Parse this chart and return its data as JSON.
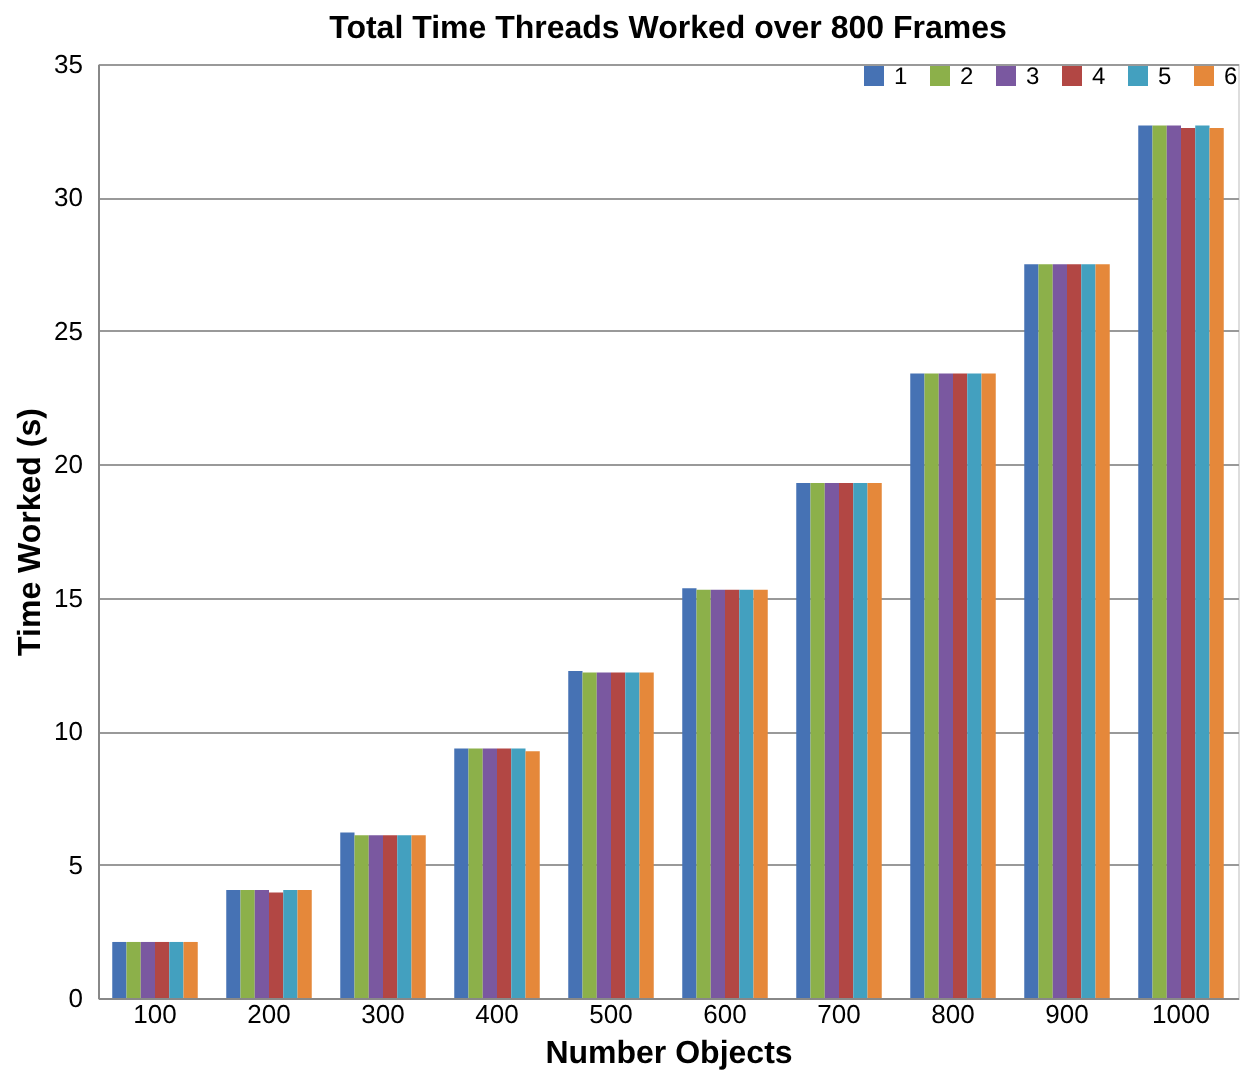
{
  "chart_data": {
    "type": "bar",
    "title": "Total Time Threads Worked over 800 Frames",
    "xlabel": "Number Objects",
    "ylabel": "Time Worked (s)",
    "categories": [
      "100",
      "200",
      "300",
      "400",
      "500",
      "600",
      "700",
      "800",
      "900",
      "1000"
    ],
    "series": [
      {
        "name": "1",
        "color": "#4672b4",
        "values": [
          2.1,
          4.05,
          6.2,
          9.35,
          12.25,
          15.35,
          19.3,
          23.4,
          27.5,
          32.7
        ]
      },
      {
        "name": "2",
        "color": "#8cb04a",
        "values": [
          2.1,
          4.05,
          6.1,
          9.35,
          12.2,
          15.3,
          19.3,
          23.4,
          27.5,
          32.7
        ]
      },
      {
        "name": "3",
        "color": "#7a58a0",
        "values": [
          2.1,
          4.05,
          6.1,
          9.35,
          12.2,
          15.3,
          19.3,
          23.4,
          27.5,
          32.7
        ]
      },
      {
        "name": "4",
        "color": "#b24744",
        "values": [
          2.1,
          3.95,
          6.1,
          9.35,
          12.2,
          15.3,
          19.3,
          23.4,
          27.5,
          32.6
        ]
      },
      {
        "name": "5",
        "color": "#43a0bf",
        "values": [
          2.1,
          4.05,
          6.1,
          9.35,
          12.2,
          15.3,
          19.3,
          23.4,
          27.5,
          32.7
        ]
      },
      {
        "name": "6",
        "color": "#e5883a",
        "values": [
          2.1,
          4.05,
          6.1,
          9.25,
          12.2,
          15.3,
          19.3,
          23.4,
          27.5,
          32.6
        ]
      }
    ],
    "ylim": [
      0,
      35
    ],
    "yticks": [
      0,
      5,
      10,
      15,
      20,
      25,
      30,
      35
    ],
    "grid": "y",
    "legend": "top right"
  }
}
